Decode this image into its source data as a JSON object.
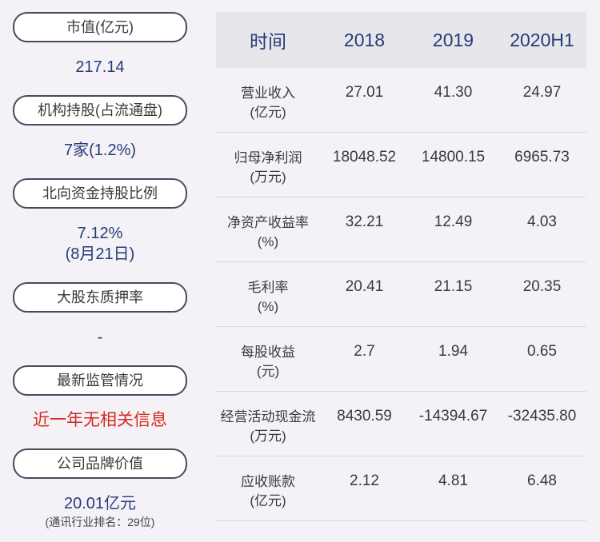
{
  "left_panel": {
    "items": [
      {
        "label": "市值(亿元)",
        "value": "217.14"
      },
      {
        "label": "机构持股(占流通盘)",
        "value": "7家(1.2%)"
      },
      {
        "label": "北向资金持股比例",
        "value": "7.12%",
        "value2": "(8月21日)"
      },
      {
        "label": "大股东质押率",
        "value": "-"
      },
      {
        "label": "最新监管情况",
        "value": "近一年无相关信息"
      },
      {
        "label": "公司品牌价值",
        "value": "20.01亿元",
        "note": "(通讯行业排名：29位)"
      }
    ]
  },
  "table": {
    "headers": [
      "时间",
      "2018",
      "2019",
      "2020H1"
    ],
    "rows": [
      {
        "label1": "营业收入",
        "label2": "(亿元)",
        "values": [
          "27.01",
          "41.30",
          "24.97"
        ]
      },
      {
        "label1": "归母净利润",
        "label2": "(万元)",
        "values": [
          "18048.52",
          "14800.15",
          "6965.73"
        ]
      },
      {
        "label1": "净资产收益率",
        "label2": "(%)",
        "values": [
          "32.21",
          "12.49",
          "4.03"
        ]
      },
      {
        "label1": "毛利率",
        "label2": "(%)",
        "values": [
          "20.41",
          "21.15",
          "20.35"
        ]
      },
      {
        "label1": "每股收益",
        "label2": "(元)",
        "values": [
          "2.7",
          "1.94",
          "0.65"
        ]
      },
      {
        "label1": "经营活动现金流",
        "label2": "(万元)",
        "values": [
          "8430.59",
          "-14394.67",
          "-32435.80"
        ]
      },
      {
        "label1": "应收账款",
        "label2": "(亿元)",
        "values": [
          "2.12",
          "4.81",
          "6.48"
        ]
      }
    ]
  },
  "colors": {
    "background": "#f4f2f6",
    "value_blue": "#253b7a",
    "alert_red": "#d42a22",
    "header_bg": "#e7e6ea"
  }
}
